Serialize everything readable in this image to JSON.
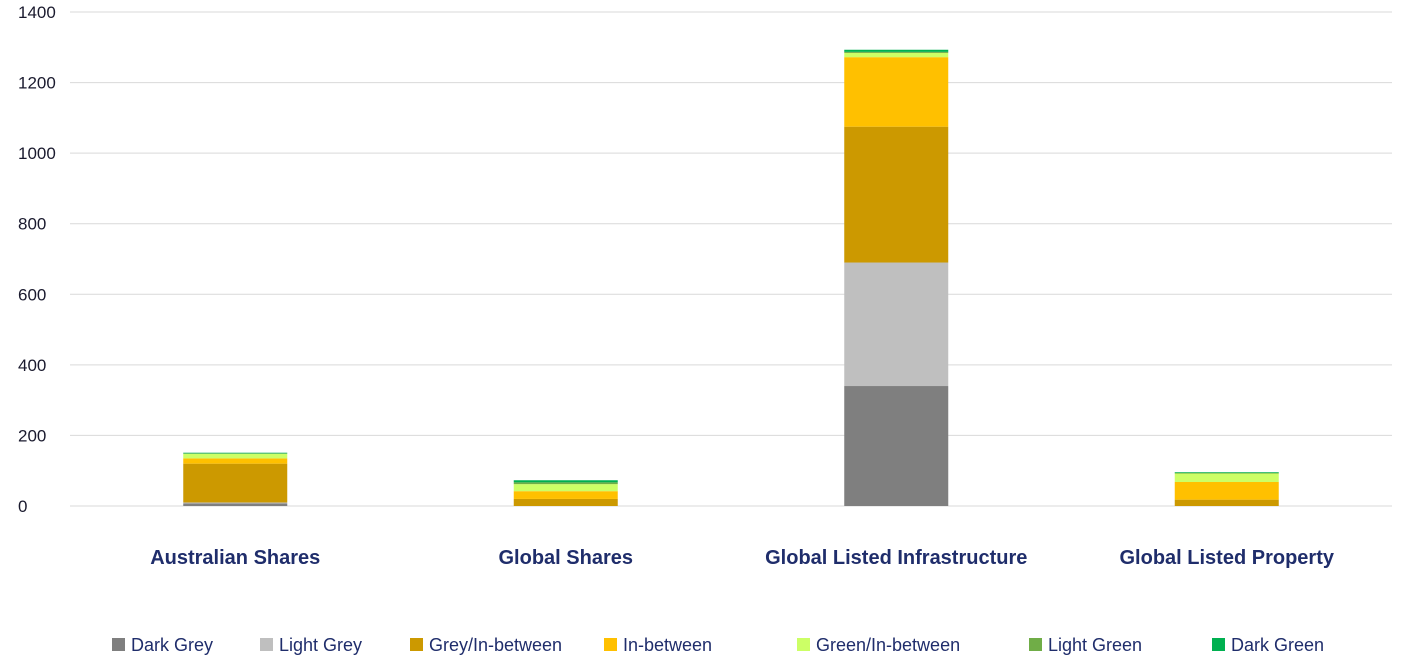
{
  "chart_data": {
    "type": "bar",
    "stacked": true,
    "title": "",
    "xlabel": "",
    "ylabel": "",
    "ylim": [
      0,
      1400
    ],
    "yticks": [
      0,
      200,
      400,
      600,
      800,
      1000,
      1200,
      1400
    ],
    "grid": true,
    "legend_position": "bottom",
    "categories": [
      "Australian Shares",
      "Global Shares",
      "Global Listed Infrastructure",
      "Global Listed Property"
    ],
    "series": [
      {
        "name": "Dark Grey",
        "color": "#7f7f7f",
        "values": [
          7,
          0,
          340,
          0
        ]
      },
      {
        "name": "Light Grey",
        "color": "#bfbfbf",
        "values": [
          3,
          0,
          350,
          0
        ]
      },
      {
        "name": "Grey/In-between",
        "color": "#cc9900",
        "values": [
          110,
          20,
          385,
          18
        ]
      },
      {
        "name": "In-between",
        "color": "#ffc000",
        "values": [
          15,
          22,
          197,
          50
        ]
      },
      {
        "name": "Green/In-between",
        "color": "#ccff66",
        "values": [
          13,
          20,
          12,
          24
        ]
      },
      {
        "name": "Light Green",
        "color": "#70ad47",
        "values": [
          1,
          5,
          3,
          2
        ]
      },
      {
        "name": "Dark Green",
        "color": "#00b050",
        "values": [
          2,
          6,
          6,
          2
        ]
      }
    ]
  }
}
